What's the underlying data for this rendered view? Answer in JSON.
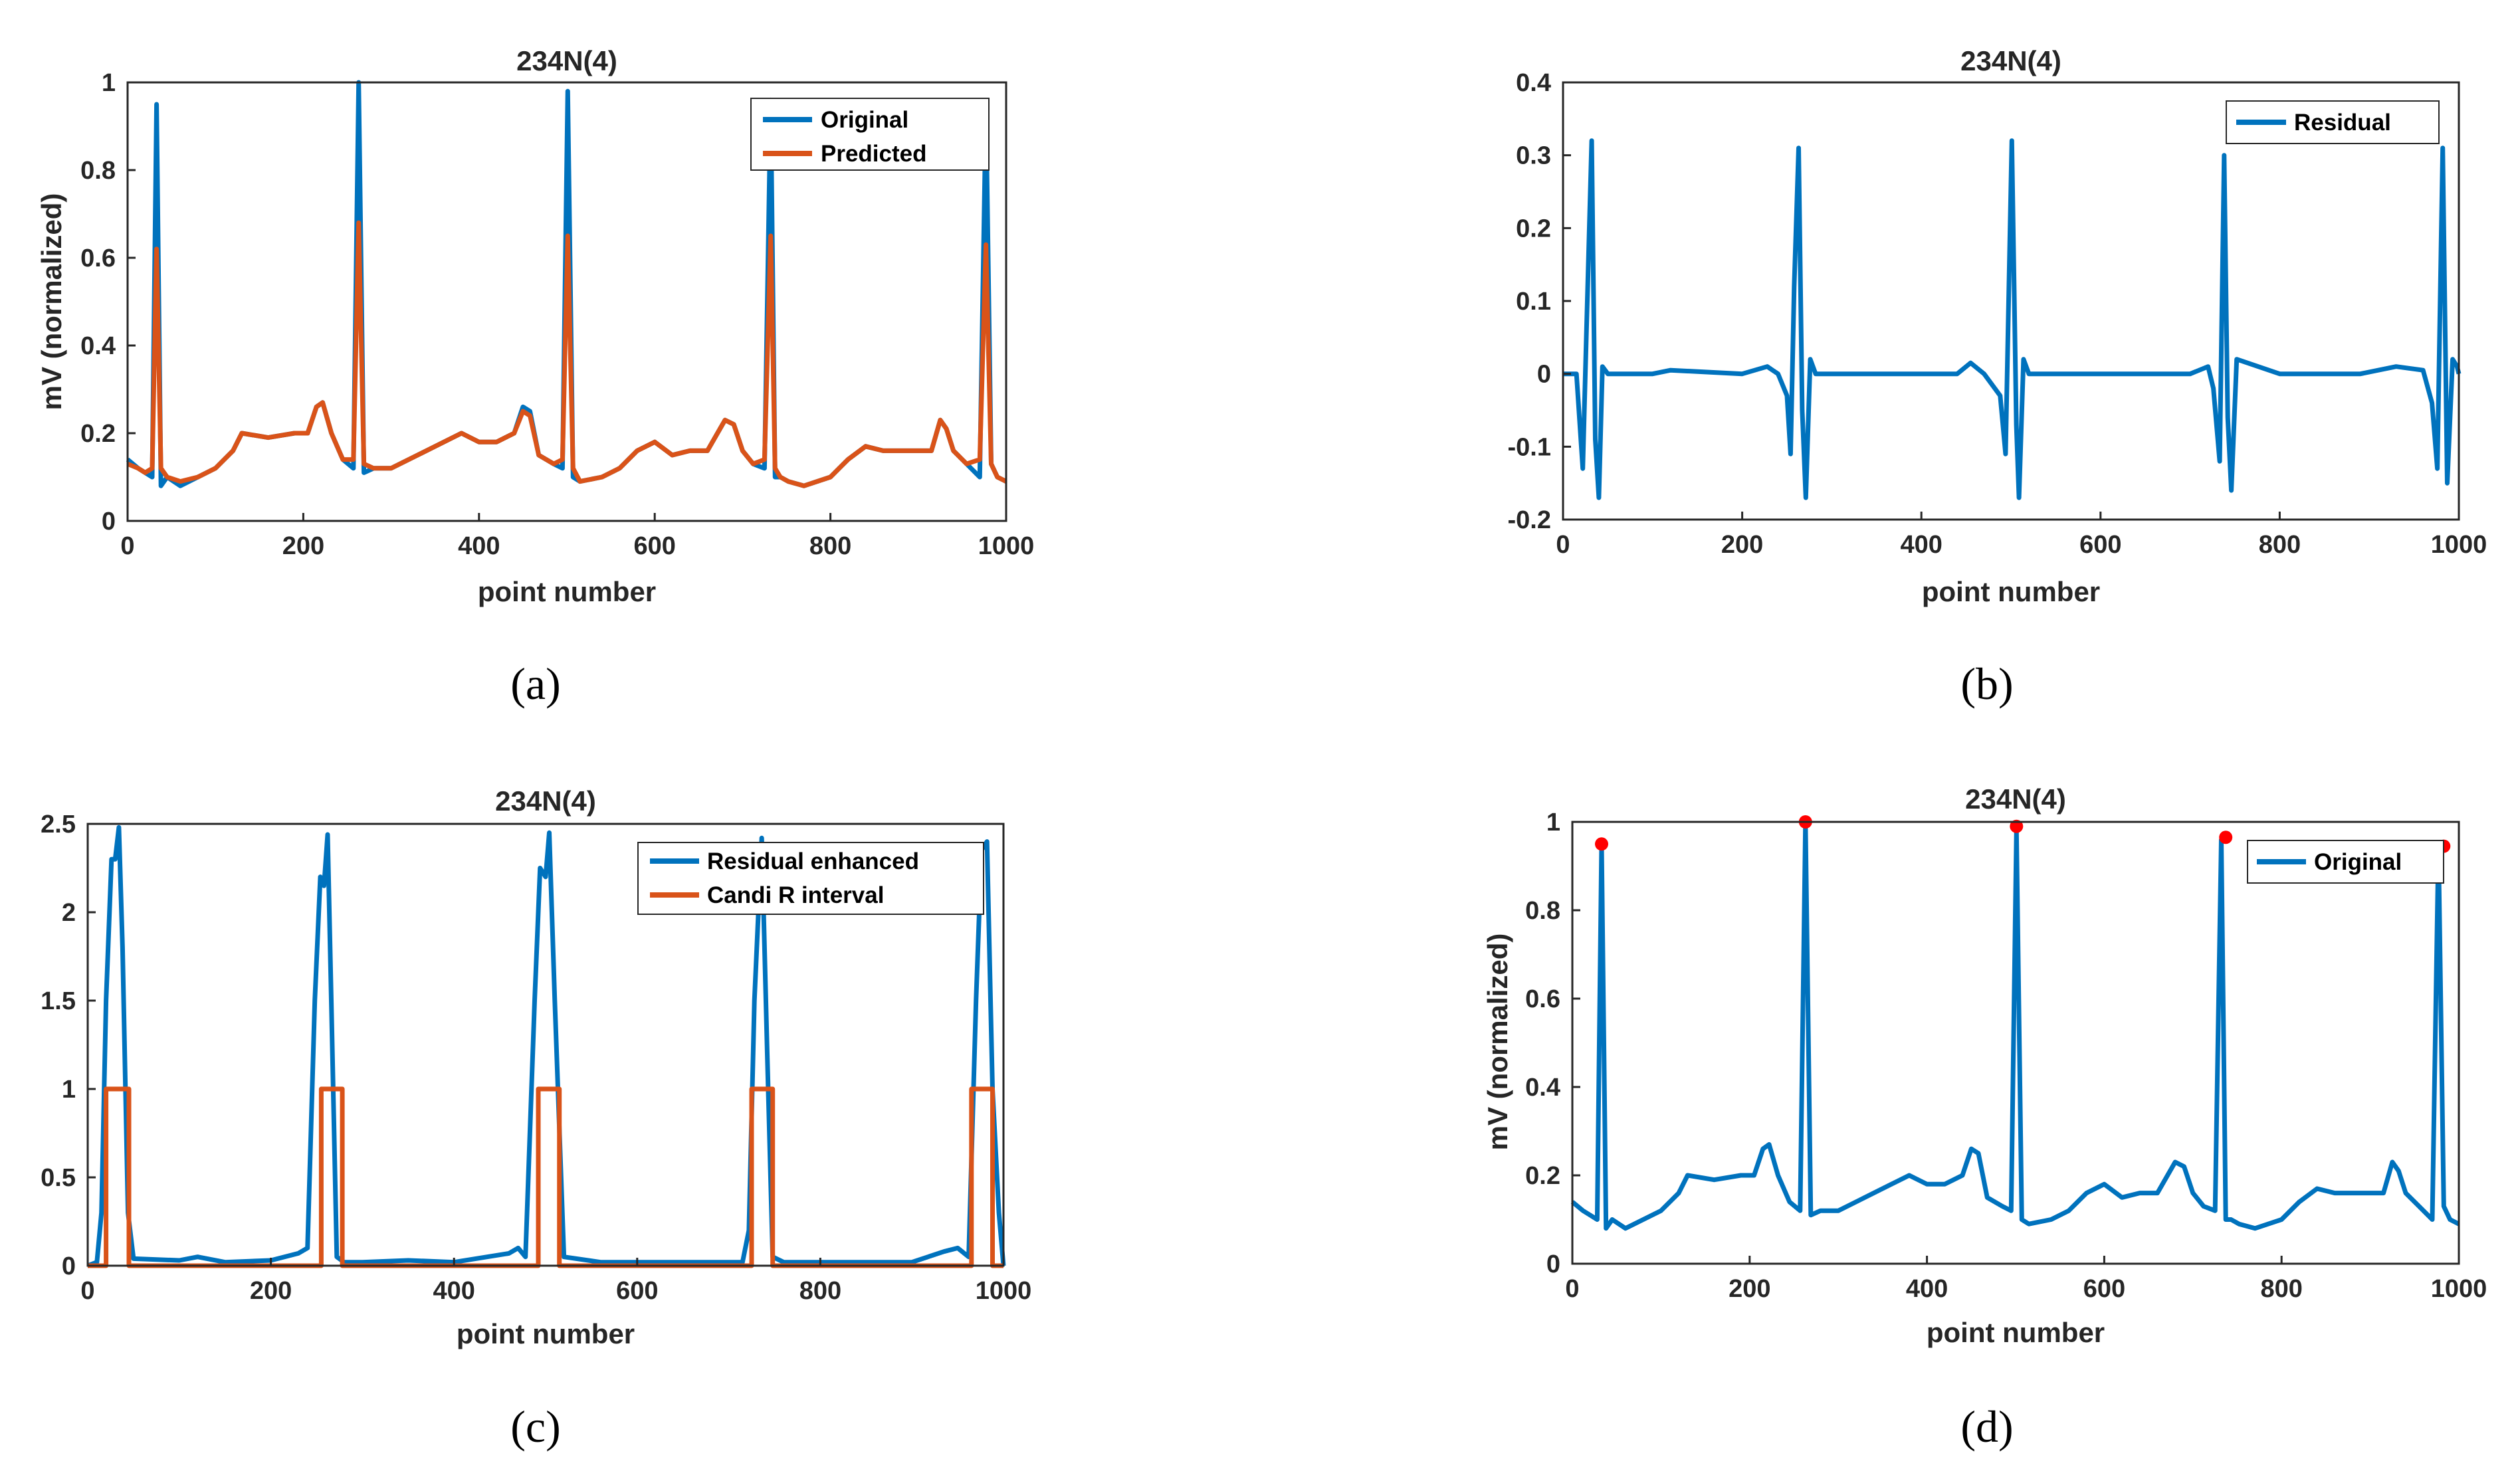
{
  "figure": {
    "colors": {
      "blue": "#0072BD",
      "orange": "#D95319",
      "red": "#FF0000",
      "axis": "#262626"
    },
    "captions": [
      "(a)",
      "(b)",
      "(c)",
      "(d)"
    ]
  },
  "chart_data": [
    {
      "id": "a",
      "type": "line",
      "title": "234N(4)",
      "xlabel": "point number",
      "ylabel": "mV (normalized)",
      "xlim": [
        0,
        1000
      ],
      "ylim": [
        0,
        1
      ],
      "xticks": [
        0,
        200,
        400,
        600,
        800,
        1000
      ],
      "yticks": [
        0,
        0.2,
        0.4,
        0.6,
        0.8,
        1
      ],
      "legend": "top-right",
      "series": [
        {
          "name": "Original",
          "color": "#0072BD",
          "x": [
            0,
            12,
            20,
            28,
            33,
            38,
            45,
            60,
            80,
            100,
            120,
            130,
            160,
            190,
            205,
            215,
            222,
            232,
            245,
            257,
            263,
            269,
            280,
            300,
            330,
            360,
            380,
            400,
            420,
            440,
            450,
            458,
            468,
            485,
            495,
            501,
            507,
            515,
            540,
            560,
            580,
            600,
            620,
            640,
            660,
            680,
            690,
            700,
            712,
            725,
            732,
            737,
            743,
            752,
            770,
            800,
            820,
            840,
            860,
            880,
            900,
            915,
            925,
            932,
            940,
            955,
            970,
            977,
            983,
            990,
            1000
          ],
          "y": [
            0.14,
            0.12,
            0.11,
            0.1,
            0.95,
            0.08,
            0.1,
            0.08,
            0.1,
            0.12,
            0.16,
            0.2,
            0.19,
            0.2,
            0.2,
            0.26,
            0.27,
            0.2,
            0.14,
            0.12,
            1.0,
            0.11,
            0.12,
            0.12,
            0.15,
            0.18,
            0.2,
            0.18,
            0.18,
            0.2,
            0.26,
            0.25,
            0.15,
            0.13,
            0.12,
            0.98,
            0.1,
            0.09,
            0.1,
            0.12,
            0.16,
            0.18,
            0.15,
            0.16,
            0.16,
            0.23,
            0.22,
            0.16,
            0.13,
            0.12,
            0.96,
            0.1,
            0.1,
            0.09,
            0.08,
            0.1,
            0.14,
            0.17,
            0.16,
            0.16,
            0.16,
            0.16,
            0.23,
            0.21,
            0.16,
            0.13,
            0.1,
            0.95,
            0.13,
            0.1,
            0.09
          ]
        },
        {
          "name": "Predicted",
          "color": "#D95319",
          "x": [
            0,
            12,
            20,
            28,
            33,
            38,
            45,
            60,
            80,
            100,
            120,
            130,
            160,
            190,
            205,
            215,
            222,
            232,
            245,
            257,
            263,
            269,
            280,
            300,
            330,
            360,
            380,
            400,
            420,
            440,
            450,
            458,
            468,
            485,
            495,
            501,
            507,
            515,
            540,
            560,
            580,
            600,
            620,
            640,
            660,
            680,
            690,
            700,
            712,
            725,
            732,
            737,
            743,
            752,
            770,
            800,
            820,
            840,
            860,
            880,
            900,
            915,
            925,
            932,
            940,
            955,
            970,
            977,
            983,
            990,
            1000
          ],
          "y": [
            0.13,
            0.12,
            0.11,
            0.12,
            0.62,
            0.12,
            0.1,
            0.09,
            0.1,
            0.12,
            0.16,
            0.2,
            0.19,
            0.2,
            0.2,
            0.26,
            0.27,
            0.2,
            0.14,
            0.14,
            0.68,
            0.13,
            0.12,
            0.12,
            0.15,
            0.18,
            0.2,
            0.18,
            0.18,
            0.2,
            0.25,
            0.24,
            0.15,
            0.13,
            0.14,
            0.65,
            0.12,
            0.09,
            0.1,
            0.12,
            0.16,
            0.18,
            0.15,
            0.16,
            0.16,
            0.23,
            0.22,
            0.16,
            0.13,
            0.14,
            0.65,
            0.12,
            0.1,
            0.09,
            0.08,
            0.1,
            0.14,
            0.17,
            0.16,
            0.16,
            0.16,
            0.16,
            0.23,
            0.21,
            0.16,
            0.13,
            0.14,
            0.63,
            0.13,
            0.1,
            0.09
          ]
        }
      ]
    },
    {
      "id": "b",
      "type": "line",
      "title": "234N(4)",
      "xlabel": "point number",
      "ylabel": "",
      "xlim": [
        0,
        1000
      ],
      "ylim": [
        -0.2,
        0.4
      ],
      "xticks": [
        0,
        200,
        400,
        600,
        800,
        1000
      ],
      "yticks": [
        -0.2,
        -0.1,
        0,
        0.1,
        0.2,
        0.3,
        0.4
      ],
      "legend": "top-right",
      "series": [
        {
          "name": "Residual",
          "color": "#0072BD",
          "x": [
            0,
            15,
            22,
            26,
            32,
            36,
            40,
            44,
            50,
            100,
            120,
            200,
            228,
            240,
            250,
            254,
            258,
            263,
            267,
            271,
            276,
            282,
            300,
            360,
            440,
            455,
            470,
            488,
            494,
            501,
            506,
            509,
            514,
            520,
            540,
            640,
            700,
            720,
            726,
            733,
            738,
            742,
            746,
            752,
            800,
            890,
            930,
            960,
            970,
            976,
            982,
            987,
            993,
            998,
            1000
          ],
          "y": [
            0,
            0,
            -0.13,
            0.05,
            0.32,
            -0.09,
            -0.17,
            0.01,
            0,
            0,
            0.005,
            0,
            0.01,
            0,
            -0.03,
            -0.11,
            0.12,
            0.31,
            -0.05,
            -0.17,
            0.02,
            0,
            0,
            0,
            0,
            0.015,
            0,
            -0.03,
            -0.11,
            0.32,
            -0.07,
            -0.17,
            0.02,
            0,
            0,
            0,
            0,
            0.01,
            -0.02,
            -0.12,
            0.3,
            -0.06,
            -0.16,
            0.02,
            0,
            0,
            0.01,
            0.005,
            -0.04,
            -0.13,
            0.31,
            -0.15,
            0.02,
            0.01,
            0
          ]
        }
      ]
    },
    {
      "id": "c",
      "type": "line",
      "title": "234N(4)",
      "xlabel": "point number",
      "ylabel": "",
      "xlim": [
        0,
        1000
      ],
      "ylim": [
        0,
        2.5
      ],
      "xticks": [
        0,
        200,
        400,
        600,
        800,
        1000
      ],
      "yticks": [
        0,
        0.5,
        1,
        1.5,
        2,
        2.5
      ],
      "legend": "top-right",
      "series": [
        {
          "name": "Residual enhanced",
          "color": "#0072BD",
          "x": [
            0,
            10,
            15,
            20,
            26,
            30,
            34,
            38,
            44,
            50,
            100,
            120,
            150,
            200,
            230,
            240,
            248,
            254,
            258,
            262,
            266,
            272,
            280,
            300,
            350,
            400,
            460,
            470,
            478,
            488,
            494,
            500,
            504,
            510,
            520,
            560,
            600,
            700,
            715,
            722,
            728,
            736,
            742,
            748,
            760,
            800,
            900,
            935,
            950,
            962,
            970,
            976,
            982,
            988,
            995,
            1000
          ],
          "y": [
            0,
            0.02,
            0.3,
            1.5,
            2.3,
            2.3,
            2.48,
            1.8,
            0.3,
            0.04,
            0.03,
            0.05,
            0.02,
            0.03,
            0.07,
            0.1,
            1.5,
            2.2,
            2.15,
            2.44,
            1.5,
            0.05,
            0.02,
            0.02,
            0.03,
            0.02,
            0.07,
            0.1,
            0.05,
            1.5,
            2.25,
            2.2,
            2.45,
            1.5,
            0.05,
            0.02,
            0.02,
            0.02,
            0.02,
            0.2,
            1.5,
            2.42,
            1.2,
            0.05,
            0.02,
            0.02,
            0.02,
            0.08,
            0.1,
            0.05,
            1.5,
            2.35,
            2.4,
            1.0,
            0.3,
            0
          ]
        },
        {
          "name": "Candi R interval",
          "color": "#D95319",
          "x": [
            0,
            20,
            20,
            45,
            45,
            255,
            255,
            278,
            278,
            492,
            492,
            515,
            515,
            725,
            725,
            748,
            748,
            965,
            965,
            988,
            988,
            1000
          ],
          "y": [
            0,
            0,
            1,
            1,
            0,
            0,
            1,
            1,
            0,
            0,
            1,
            1,
            0,
            0,
            1,
            1,
            0,
            0,
            1,
            1,
            0,
            0
          ]
        }
      ]
    },
    {
      "id": "d",
      "type": "line",
      "title": "234N(4)",
      "xlabel": "point number",
      "ylabel": "mV (normalized)",
      "xlim": [
        0,
        1000
      ],
      "ylim": [
        0,
        1
      ],
      "xticks": [
        0,
        200,
        400,
        600,
        800,
        1000
      ],
      "yticks": [
        0,
        0.2,
        0.4,
        0.6,
        0.8,
        1
      ],
      "legend": "top-right",
      "series": [
        {
          "name": "Original",
          "color": "#0072BD",
          "x": [
            0,
            12,
            20,
            28,
            33,
            38,
            45,
            60,
            80,
            100,
            120,
            130,
            160,
            190,
            205,
            215,
            222,
            232,
            245,
            257,
            263,
            269,
            280,
            300,
            330,
            360,
            380,
            400,
            420,
            440,
            450,
            458,
            468,
            485,
            495,
            501,
            507,
            515,
            540,
            560,
            580,
            600,
            620,
            640,
            660,
            680,
            690,
            700,
            712,
            725,
            732,
            737,
            743,
            752,
            770,
            800,
            820,
            840,
            860,
            880,
            900,
            915,
            925,
            932,
            940,
            955,
            970,
            977,
            983,
            990,
            1000
          ],
          "y": [
            0.14,
            0.12,
            0.11,
            0.1,
            0.95,
            0.08,
            0.1,
            0.08,
            0.1,
            0.12,
            0.16,
            0.2,
            0.19,
            0.2,
            0.2,
            0.26,
            0.27,
            0.2,
            0.14,
            0.12,
            1.0,
            0.11,
            0.12,
            0.12,
            0.15,
            0.18,
            0.2,
            0.18,
            0.18,
            0.2,
            0.26,
            0.25,
            0.15,
            0.13,
            0.12,
            0.98,
            0.1,
            0.09,
            0.1,
            0.12,
            0.16,
            0.18,
            0.15,
            0.16,
            0.16,
            0.23,
            0.22,
            0.16,
            0.13,
            0.12,
            0.96,
            0.1,
            0.1,
            0.09,
            0.08,
            0.1,
            0.14,
            0.17,
            0.16,
            0.16,
            0.16,
            0.16,
            0.23,
            0.21,
            0.16,
            0.13,
            0.1,
            0.95,
            0.13,
            0.1,
            0.09
          ]
        }
      ],
      "markers": {
        "name": "R peaks",
        "color": "#FF0000",
        "x": [
          33,
          263,
          501,
          737,
          983
        ],
        "y": [
          0.95,
          1.0,
          0.99,
          0.965,
          0.945
        ]
      }
    }
  ]
}
